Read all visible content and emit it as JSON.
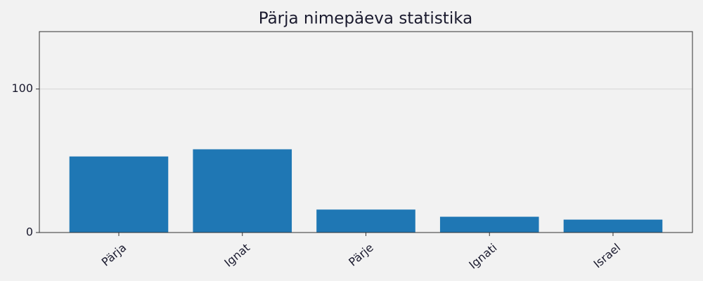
{
  "chart_data": {
    "type": "bar",
    "title": "Pärja nimepäeva statistika",
    "categories": [
      "Pärja",
      "Ignat",
      "Pärje",
      "Ignati",
      "Israel"
    ],
    "values": [
      53,
      58,
      16,
      11,
      9
    ],
    "color": "#1f77b4",
    "ylim": [
      0,
      140
    ],
    "yticks": [
      0,
      100
    ],
    "grid": true
  }
}
